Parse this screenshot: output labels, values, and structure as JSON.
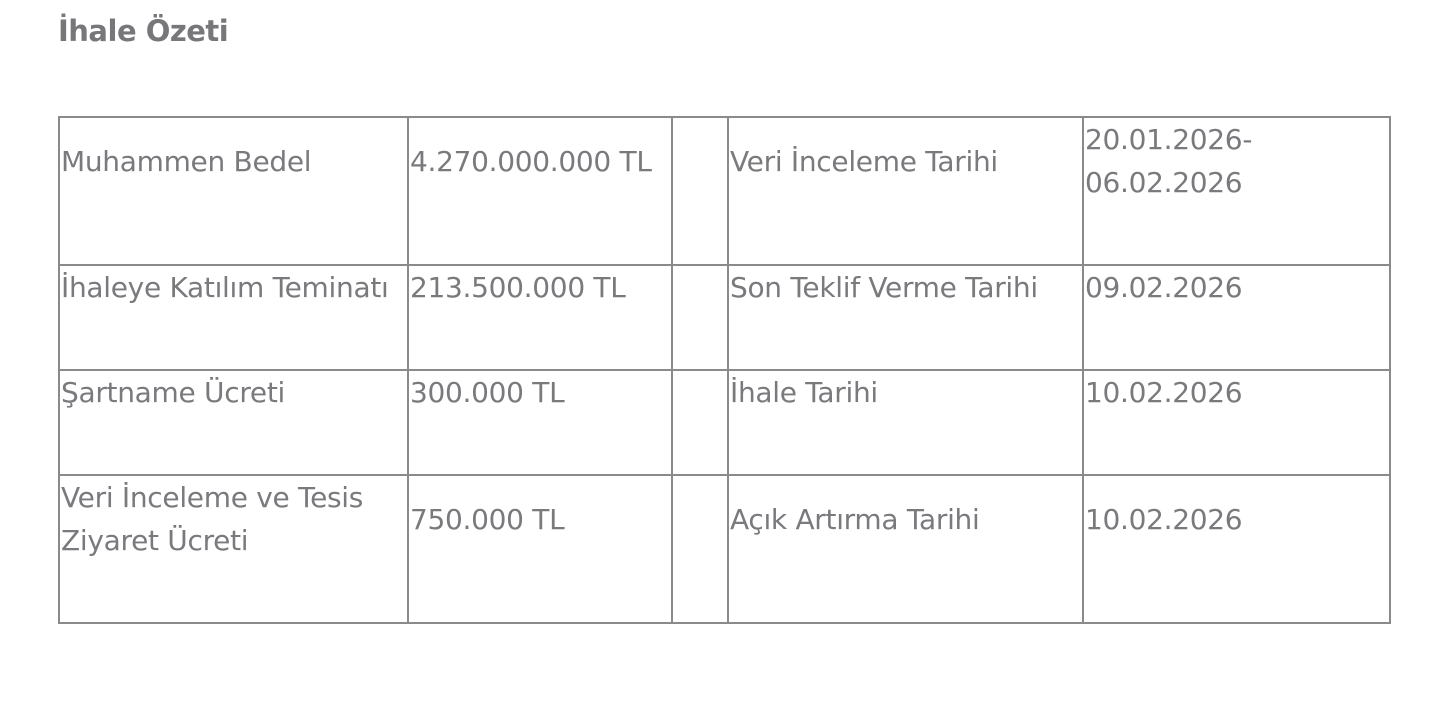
{
  "title": "İhale Özeti",
  "rows": [
    {
      "label1": "Muhammen Bedel",
      "value1": "4.270.000.000 TL",
      "label2": "Veri İnceleme Tarihi",
      "value2": "20.01.2026-06.02.2026"
    },
    {
      "label1": "İhaleye Katılım Teminatı",
      "value1": "213.500.000 TL",
      "label2": "Son Teklif Verme Tarihi",
      "value2": "09.02.2026"
    },
    {
      "label1": "Şartname Ücreti",
      "value1": "300.000 TL",
      "label2": "İhale Tarihi",
      "value2": "10.02.2026"
    },
    {
      "label1": "Veri İnceleme ve Tesis Ziyaret Ücreti",
      "value1": "750.000 TL",
      "label2": "Açık Artırma Tarihi",
      "value2": "10.02.2026"
    }
  ]
}
